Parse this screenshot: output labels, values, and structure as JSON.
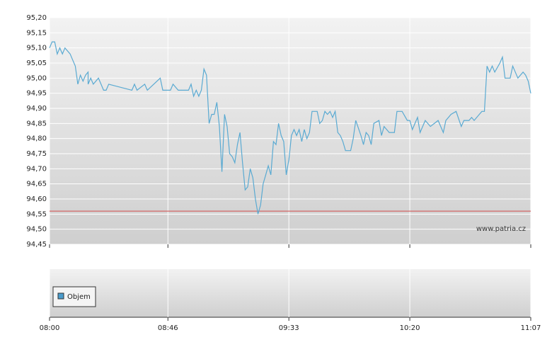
{
  "chart_data": {
    "type": "line",
    "x": [
      "08:00",
      "08:01",
      "08:02",
      "08:03",
      "08:04",
      "08:05",
      "08:06",
      "08:08",
      "08:09",
      "08:10",
      "08:11",
      "08:12",
      "08:13",
      "08:14",
      "08:15",
      "08:15",
      "08:16",
      "08:17",
      "08:19",
      "08:21",
      "08:22",
      "08:23",
      "08:32",
      "08:33",
      "08:34",
      "08:37",
      "08:38",
      "08:43",
      "08:44",
      "08:47",
      "08:48",
      "08:50",
      "08:54",
      "08:55",
      "08:56",
      "08:57",
      "08:58",
      "08:59",
      "09:00",
      "09:01",
      "09:02",
      "09:03",
      "09:04",
      "09:05",
      "09:06",
      "09:07",
      "09:08",
      "09:09",
      "09:10",
      "09:11",
      "09:12",
      "09:13",
      "09:14",
      "09:15",
      "09:16",
      "09:17",
      "09:18",
      "09:19",
      "09:20",
      "09:21",
      "09:22",
      "09:23",
      "09:24",
      "09:25",
      "09:26",
      "09:27",
      "09:28",
      "09:29",
      "09:30",
      "09:31",
      "09:32",
      "09:33",
      "09:34",
      "09:35",
      "09:36",
      "09:37",
      "09:38",
      "09:39",
      "09:40",
      "09:41",
      "09:42",
      "09:43",
      "09:44",
      "09:45",
      "09:46",
      "09:47",
      "09:48",
      "09:49",
      "09:50",
      "09:51",
      "09:52",
      "09:53",
      "09:54",
      "09:55",
      "09:57",
      "09:58",
      "09:59",
      "10:01",
      "10:02",
      "10:03",
      "10:04",
      "10:05",
      "10:06",
      "10:08",
      "10:09",
      "10:10",
      "10:12",
      "10:14",
      "10:15",
      "10:17",
      "10:19",
      "10:20",
      "10:21",
      "10:23",
      "10:24",
      "10:26",
      "10:28",
      "10:31",
      "10:33",
      "10:34",
      "10:36",
      "10:38",
      "10:40",
      "10:41",
      "10:43",
      "10:44",
      "10:45",
      "10:47",
      "10:48",
      "10:49",
      "10:50",
      "10:51",
      "10:52",
      "10:53",
      "10:55",
      "10:56",
      "10:57",
      "10:59",
      "11:00",
      "11:02",
      "11:04",
      "11:05",
      "11:06",
      "11:07"
    ],
    "series": [
      {
        "color": "#5aaad2",
        "values": [
          95.1,
          95.12,
          95.12,
          95.08,
          95.1,
          95.08,
          95.1,
          95.08,
          95.06,
          95.04,
          94.98,
          95.01,
          94.99,
          95.01,
          95.02,
          94.98,
          95.0,
          94.98,
          95.0,
          94.96,
          94.96,
          94.98,
          94.96,
          94.98,
          94.96,
          94.98,
          94.96,
          95.0,
          94.96,
          94.96,
          94.98,
          94.96,
          94.96,
          94.98,
          94.94,
          94.96,
          94.94,
          94.96,
          95.03,
          95.01,
          94.85,
          94.88,
          94.88,
          94.92,
          94.84,
          94.69,
          94.88,
          94.84,
          94.75,
          94.74,
          94.72,
          94.78,
          94.82,
          94.72,
          94.63,
          94.64,
          94.7,
          94.67,
          94.6,
          94.55,
          94.58,
          94.65,
          94.68,
          94.71,
          94.68,
          94.79,
          94.78,
          94.85,
          94.81,
          94.79,
          94.68,
          94.73,
          94.81,
          94.83,
          94.81,
          94.83,
          94.79,
          94.83,
          94.8,
          94.82,
          94.89,
          94.89,
          94.89,
          94.85,
          94.86,
          94.89,
          94.88,
          94.89,
          94.87,
          94.89,
          94.82,
          94.81,
          94.79,
          94.76,
          94.76,
          94.8,
          94.86,
          94.81,
          94.78,
          94.82,
          94.81,
          94.78,
          94.85,
          94.86,
          94.81,
          94.84,
          94.82,
          94.82,
          94.89,
          94.89,
          94.86,
          94.86,
          94.83,
          94.87,
          94.82,
          94.86,
          94.84,
          94.86,
          94.82,
          94.86,
          94.88,
          94.89,
          94.84,
          94.86,
          94.86,
          94.87,
          94.86,
          94.88,
          94.89,
          94.89,
          95.04,
          95.02,
          95.04,
          95.02,
          95.05,
          95.07,
          95.0,
          95.0,
          95.04,
          95.0,
          95.02,
          95.01,
          94.99,
          94.95
        ]
      }
    ],
    "xlim": [
      "08:00",
      "11:07"
    ],
    "xticks": [
      "08:00",
      "08:46",
      "09:33",
      "10:20",
      "11:07"
    ],
    "ylim": [
      94.45,
      95.2
    ],
    "yticks": [
      {
        "value": 94.45,
        "label": "94,45"
      },
      {
        "value": 94.5,
        "label": "94,50"
      },
      {
        "value": 94.55,
        "label": "94,55"
      },
      {
        "value": 94.6,
        "label": "94,60"
      },
      {
        "value": 94.65,
        "label": "94,65"
      },
      {
        "value": 94.7,
        "label": "94,70"
      },
      {
        "value": 94.75,
        "label": "94,75"
      },
      {
        "value": 94.8,
        "label": "94,80"
      },
      {
        "value": 94.85,
        "label": "94,85"
      },
      {
        "value": 94.9,
        "label": "94,90"
      },
      {
        "value": 94.95,
        "label": "94,95"
      },
      {
        "value": 95.0,
        "label": "95,00"
      },
      {
        "value": 95.05,
        "label": "95,05"
      },
      {
        "value": 95.1,
        "label": "95,10"
      },
      {
        "value": 95.15,
        "label": "95,15"
      },
      {
        "value": 95.2,
        "label": "95,20"
      }
    ],
    "grid": true,
    "reference_line": {
      "value": 94.56,
      "color": "#d04a4a"
    },
    "watermark": "www.patria.cz",
    "volume_legend": {
      "label": "Objem",
      "color": "#4a9ccc"
    }
  }
}
